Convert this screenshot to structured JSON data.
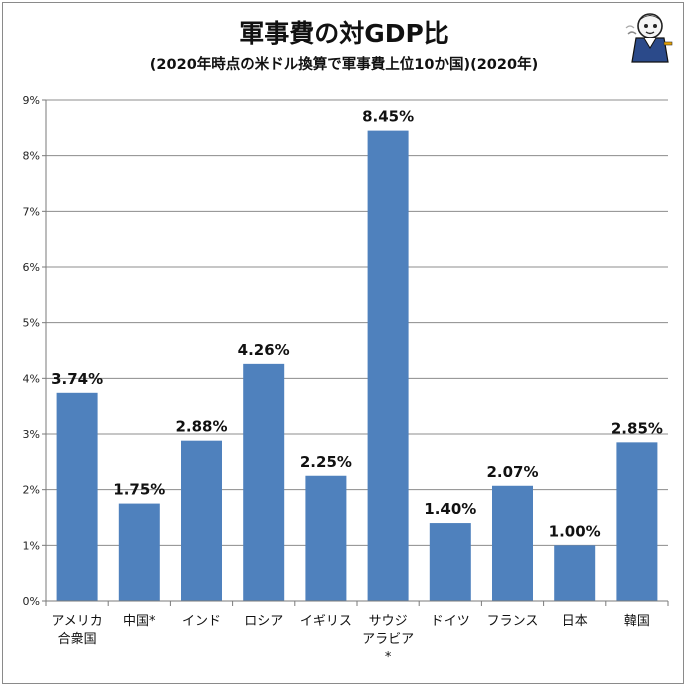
{
  "chart_data": {
    "type": "bar",
    "title": "軍事費の対GDP比",
    "subtitle": "(2020年時点の米ドル換算で軍事費上位10か国)(2020年)",
    "categories": [
      [
        "アメリカ",
        "合衆国"
      ],
      [
        "中国*"
      ],
      [
        "インド"
      ],
      [
        "ロシア"
      ],
      [
        "イギリス"
      ],
      [
        "サウジ",
        "アラビア",
        "*"
      ],
      [
        "ドイツ"
      ],
      [
        "フランス"
      ],
      [
        "日本"
      ],
      [
        "韓国"
      ]
    ],
    "values": [
      3.74,
      1.75,
      2.88,
      4.26,
      2.25,
      8.45,
      1.4,
      2.07,
      1.0,
      2.85
    ],
    "data_labels": [
      "3.74%",
      "1.75%",
      "2.88%",
      "4.26%",
      "2.25%",
      "8.45%",
      "1.40%",
      "2.07%",
      "1.00%",
      "2.85%"
    ],
    "y_ticks": [
      "0%",
      "1%",
      "2%",
      "3%",
      "4%",
      "5%",
      "6%",
      "7%",
      "8%",
      "9%"
    ],
    "ylim": [
      0,
      9
    ],
    "grid": true,
    "bar_color": "#4f81bd"
  }
}
